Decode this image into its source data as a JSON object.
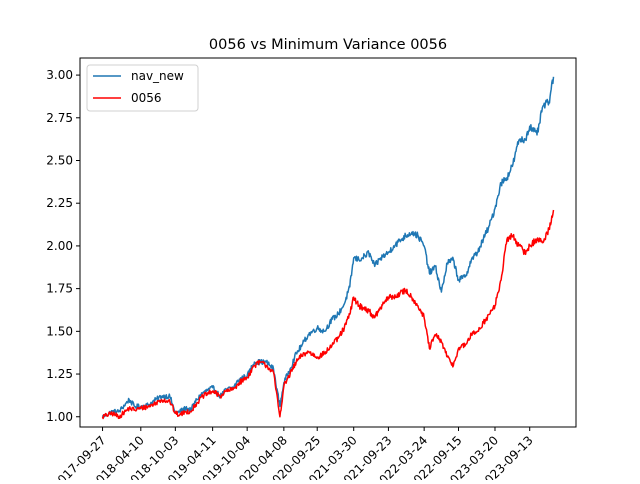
{
  "chart_data": {
    "type": "line",
    "title": "0056 vs Minimum Variance 0056",
    "xlabel": "",
    "ylabel": "",
    "x_tick_labels": [
      "2017-09-27",
      "2018-04-10",
      "2018-10-03",
      "2019-04-11",
      "2019-10-04",
      "2020-04-08",
      "2020-09-25",
      "2021-03-30",
      "2021-09-23",
      "2022-03-24",
      "2022-09-15",
      "2023-03-20",
      "2023-09-13"
    ],
    "y_ticks": [
      "1.00",
      "1.25",
      "1.50",
      "1.75",
      "2.00",
      "2.25",
      "2.50",
      "2.75",
      "3.00"
    ],
    "ylim": [
      0.94,
      3.1
    ],
    "legend_position": "upper left",
    "grid": false,
    "series": [
      {
        "name": "nav_new",
        "color": "#1f77b4",
        "x": [
          "2017-09-27",
          "2017-11-15",
          "2017-12-20",
          "2018-02-10",
          "2018-03-10",
          "2018-04-10",
          "2018-05-20",
          "2018-06-25",
          "2018-07-25",
          "2018-09-05",
          "2018-10-03",
          "2018-10-25",
          "2018-11-25",
          "2018-12-20",
          "2019-01-20",
          "2019-02-20",
          "2019-04-11",
          "2019-05-20",
          "2019-06-20",
          "2019-07-25",
          "2019-08-25",
          "2019-10-04",
          "2019-11-10",
          "2019-12-10",
          "2020-01-10",
          "2020-02-15",
          "2020-03-19",
          "2020-04-08",
          "2020-05-10",
          "2020-06-10",
          "2020-07-10",
          "2020-08-10",
          "2020-09-25",
          "2020-11-01",
          "2020-12-10",
          "2021-01-10",
          "2021-02-10",
          "2021-03-10",
          "2021-03-30",
          "2021-04-25",
          "2021-05-15",
          "2021-06-15",
          "2021-07-15",
          "2021-08-15",
          "2021-09-23",
          "2021-10-20",
          "2021-11-20",
          "2021-12-20",
          "2022-01-20",
          "2022-02-20",
          "2022-03-24",
          "2022-04-20",
          "2022-05-20",
          "2022-06-20",
          "2022-07-20",
          "2022-08-20",
          "2022-09-15",
          "2022-10-20",
          "2022-11-20",
          "2022-12-20",
          "2023-01-20",
          "2023-02-20",
          "2023-03-20",
          "2023-04-20",
          "2023-05-20",
          "2023-06-20",
          "2023-07-20",
          "2023-08-20",
          "2023-09-13",
          "2023-10-20",
          "2023-11-20",
          "2023-12-20",
          "2024-01-12"
        ],
        "values": [
          1.0,
          1.03,
          1.03,
          1.1,
          1.06,
          1.06,
          1.07,
          1.1,
          1.12,
          1.12,
          1.02,
          1.03,
          1.05,
          1.04,
          1.1,
          1.14,
          1.17,
          1.12,
          1.16,
          1.17,
          1.22,
          1.24,
          1.32,
          1.32,
          1.32,
          1.28,
          1.06,
          1.2,
          1.28,
          1.37,
          1.42,
          1.48,
          1.52,
          1.5,
          1.57,
          1.6,
          1.66,
          1.76,
          1.93,
          1.92,
          1.93,
          1.96,
          1.88,
          1.93,
          1.96,
          2.0,
          2.03,
          2.06,
          2.08,
          2.06,
          2.0,
          1.84,
          1.88,
          1.73,
          1.9,
          1.92,
          1.8,
          1.82,
          1.92,
          1.96,
          2.04,
          2.12,
          2.22,
          2.37,
          2.4,
          2.48,
          2.62,
          2.62,
          2.7,
          2.65,
          2.82,
          2.84,
          2.99
        ]
      },
      {
        "name": "0056",
        "color": "#ff0000",
        "x": [
          "2017-09-27",
          "2017-11-15",
          "2017-12-20",
          "2018-02-10",
          "2018-03-10",
          "2018-04-10",
          "2018-05-20",
          "2018-06-25",
          "2018-07-25",
          "2018-09-05",
          "2018-10-03",
          "2018-10-25",
          "2018-11-25",
          "2018-12-20",
          "2019-01-20",
          "2019-02-20",
          "2019-04-11",
          "2019-05-20",
          "2019-06-20",
          "2019-07-25",
          "2019-08-25",
          "2019-10-04",
          "2019-11-10",
          "2019-12-10",
          "2020-01-10",
          "2020-02-15",
          "2020-03-19",
          "2020-04-08",
          "2020-05-10",
          "2020-06-10",
          "2020-07-10",
          "2020-08-10",
          "2020-09-25",
          "2020-11-01",
          "2020-12-10",
          "2021-01-10",
          "2021-02-10",
          "2021-03-10",
          "2021-03-30",
          "2021-04-25",
          "2021-05-15",
          "2021-06-15",
          "2021-07-15",
          "2021-08-15",
          "2021-09-23",
          "2021-10-20",
          "2021-11-20",
          "2021-12-20",
          "2022-01-20",
          "2022-02-20",
          "2022-03-24",
          "2022-04-20",
          "2022-05-20",
          "2022-06-20",
          "2022-07-20",
          "2022-08-20",
          "2022-09-15",
          "2022-10-20",
          "2022-11-20",
          "2022-12-20",
          "2023-01-20",
          "2023-02-20",
          "2023-03-20",
          "2023-04-20",
          "2023-05-20",
          "2023-06-20",
          "2023-07-20",
          "2023-08-20",
          "2023-09-13",
          "2023-10-20",
          "2023-11-20",
          "2023-12-20",
          "2024-01-12"
        ],
        "values": [
          1.0,
          1.02,
          1.0,
          1.05,
          1.04,
          1.05,
          1.06,
          1.08,
          1.1,
          1.09,
          1.02,
          1.01,
          1.03,
          1.03,
          1.08,
          1.12,
          1.15,
          1.12,
          1.15,
          1.16,
          1.2,
          1.23,
          1.3,
          1.32,
          1.3,
          1.26,
          1.0,
          1.18,
          1.25,
          1.32,
          1.36,
          1.38,
          1.35,
          1.37,
          1.42,
          1.46,
          1.52,
          1.6,
          1.7,
          1.65,
          1.64,
          1.62,
          1.58,
          1.64,
          1.7,
          1.7,
          1.72,
          1.74,
          1.7,
          1.65,
          1.58,
          1.4,
          1.48,
          1.44,
          1.35,
          1.3,
          1.4,
          1.42,
          1.48,
          1.5,
          1.55,
          1.6,
          1.65,
          1.8,
          2.04,
          2.06,
          2.0,
          1.96,
          2.0,
          2.04,
          2.02,
          2.1,
          2.21
        ]
      }
    ]
  }
}
